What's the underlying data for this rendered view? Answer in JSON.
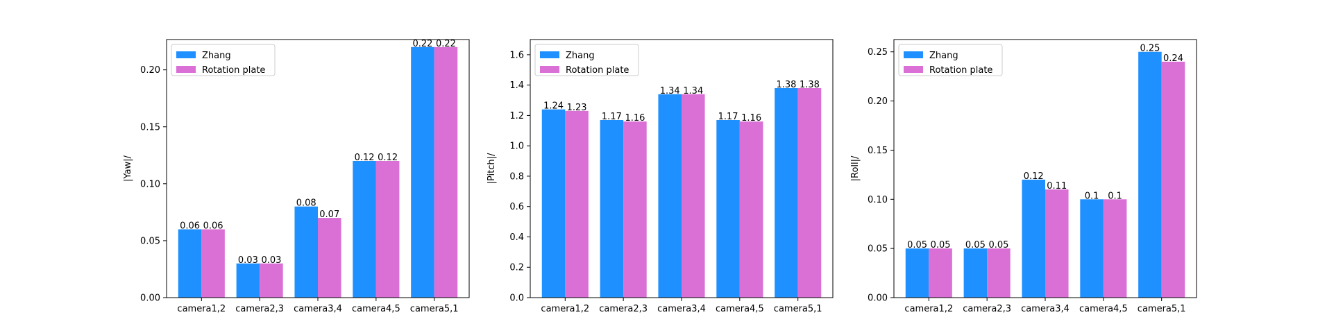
{
  "chart_data": [
    {
      "type": "bar",
      "categories": [
        "camera1,2",
        "camera2,3",
        "camera3,4",
        "camera4,5",
        "camera5,1"
      ],
      "series": [
        {
          "name": "Zhang",
          "values": [
            0.06,
            0.03,
            0.08,
            0.12,
            0.22
          ],
          "labels": [
            "0.06",
            "0.03",
            "0.08",
            "0.12",
            "0.22"
          ]
        },
        {
          "name": "Rotation plate",
          "values": [
            0.06,
            0.03,
            0.07,
            0.12,
            0.22
          ],
          "labels": [
            "0.06",
            "0.03",
            "0.07",
            "0.12",
            "0.22"
          ]
        }
      ],
      "title": "",
      "xlabel": "",
      "ylabel": "|Yaw|/",
      "ylim": [
        0,
        0.2266
      ],
      "yticks": [
        0.0,
        0.05,
        0.1,
        0.15,
        0.2
      ],
      "ytick_labels": [
        "0.00",
        "0.05",
        "0.10",
        "0.15",
        "0.20"
      ],
      "legend_position": "top-left",
      "grid": false
    },
    {
      "type": "bar",
      "categories": [
        "camera1,2",
        "camera2,3",
        "camera3,4",
        "camera4,5",
        "camera5,1"
      ],
      "series": [
        {
          "name": "Zhang",
          "values": [
            1.24,
            1.17,
            1.34,
            1.17,
            1.38
          ],
          "labels": [
            "1.24",
            "1.17",
            "1.34",
            "1.17",
            "1.38"
          ]
        },
        {
          "name": "Rotation plate",
          "values": [
            1.23,
            1.16,
            1.34,
            1.16,
            1.38
          ],
          "labels": [
            "1.23",
            "1.16",
            "1.34",
            "1.16",
            "1.38"
          ]
        }
      ],
      "title": "",
      "xlabel": "",
      "ylabel": "|Pitch|/",
      "ylim": [
        0,
        1.7
      ],
      "yticks": [
        0.0,
        0.2,
        0.4,
        0.6,
        0.8,
        1.0,
        1.2,
        1.4,
        1.6
      ],
      "ytick_labels": [
        "0.0",
        "0.2",
        "0.4",
        "0.6",
        "0.8",
        "1.0",
        "1.2",
        "1.4",
        "1.6"
      ],
      "legend_position": "top-left",
      "grid": false
    },
    {
      "type": "bar",
      "categories": [
        "camera1,2",
        "camera2,3",
        "camera3,4",
        "camera4,5",
        "camera5,1"
      ],
      "series": [
        {
          "name": "Zhang",
          "values": [
            0.05,
            0.05,
            0.12,
            0.1,
            0.25
          ],
          "labels": [
            "0.05",
            "0.05",
            "0.12",
            "0.1",
            "0.25"
          ]
        },
        {
          "name": "Rotation plate",
          "values": [
            0.05,
            0.05,
            0.11,
            0.1,
            0.24
          ],
          "labels": [
            "0.05",
            "0.05",
            "0.11",
            "0.1",
            "0.24"
          ]
        }
      ],
      "title": "",
      "xlabel": "",
      "ylabel": "|Roll|/",
      "ylim": [
        0,
        0.2625
      ],
      "yticks": [
        0.0,
        0.05,
        0.1,
        0.15,
        0.2,
        0.25
      ],
      "ytick_labels": [
        "0.00",
        "0.05",
        "0.10",
        "0.15",
        "0.20",
        "0.25"
      ],
      "legend_position": "top-left",
      "grid": false
    }
  ],
  "colors": {
    "zhang": "#1e90ff",
    "rotation_plate": "#da70d6",
    "axes": "#000000",
    "background": "#ffffff",
    "legend_border": "#cccccc"
  }
}
